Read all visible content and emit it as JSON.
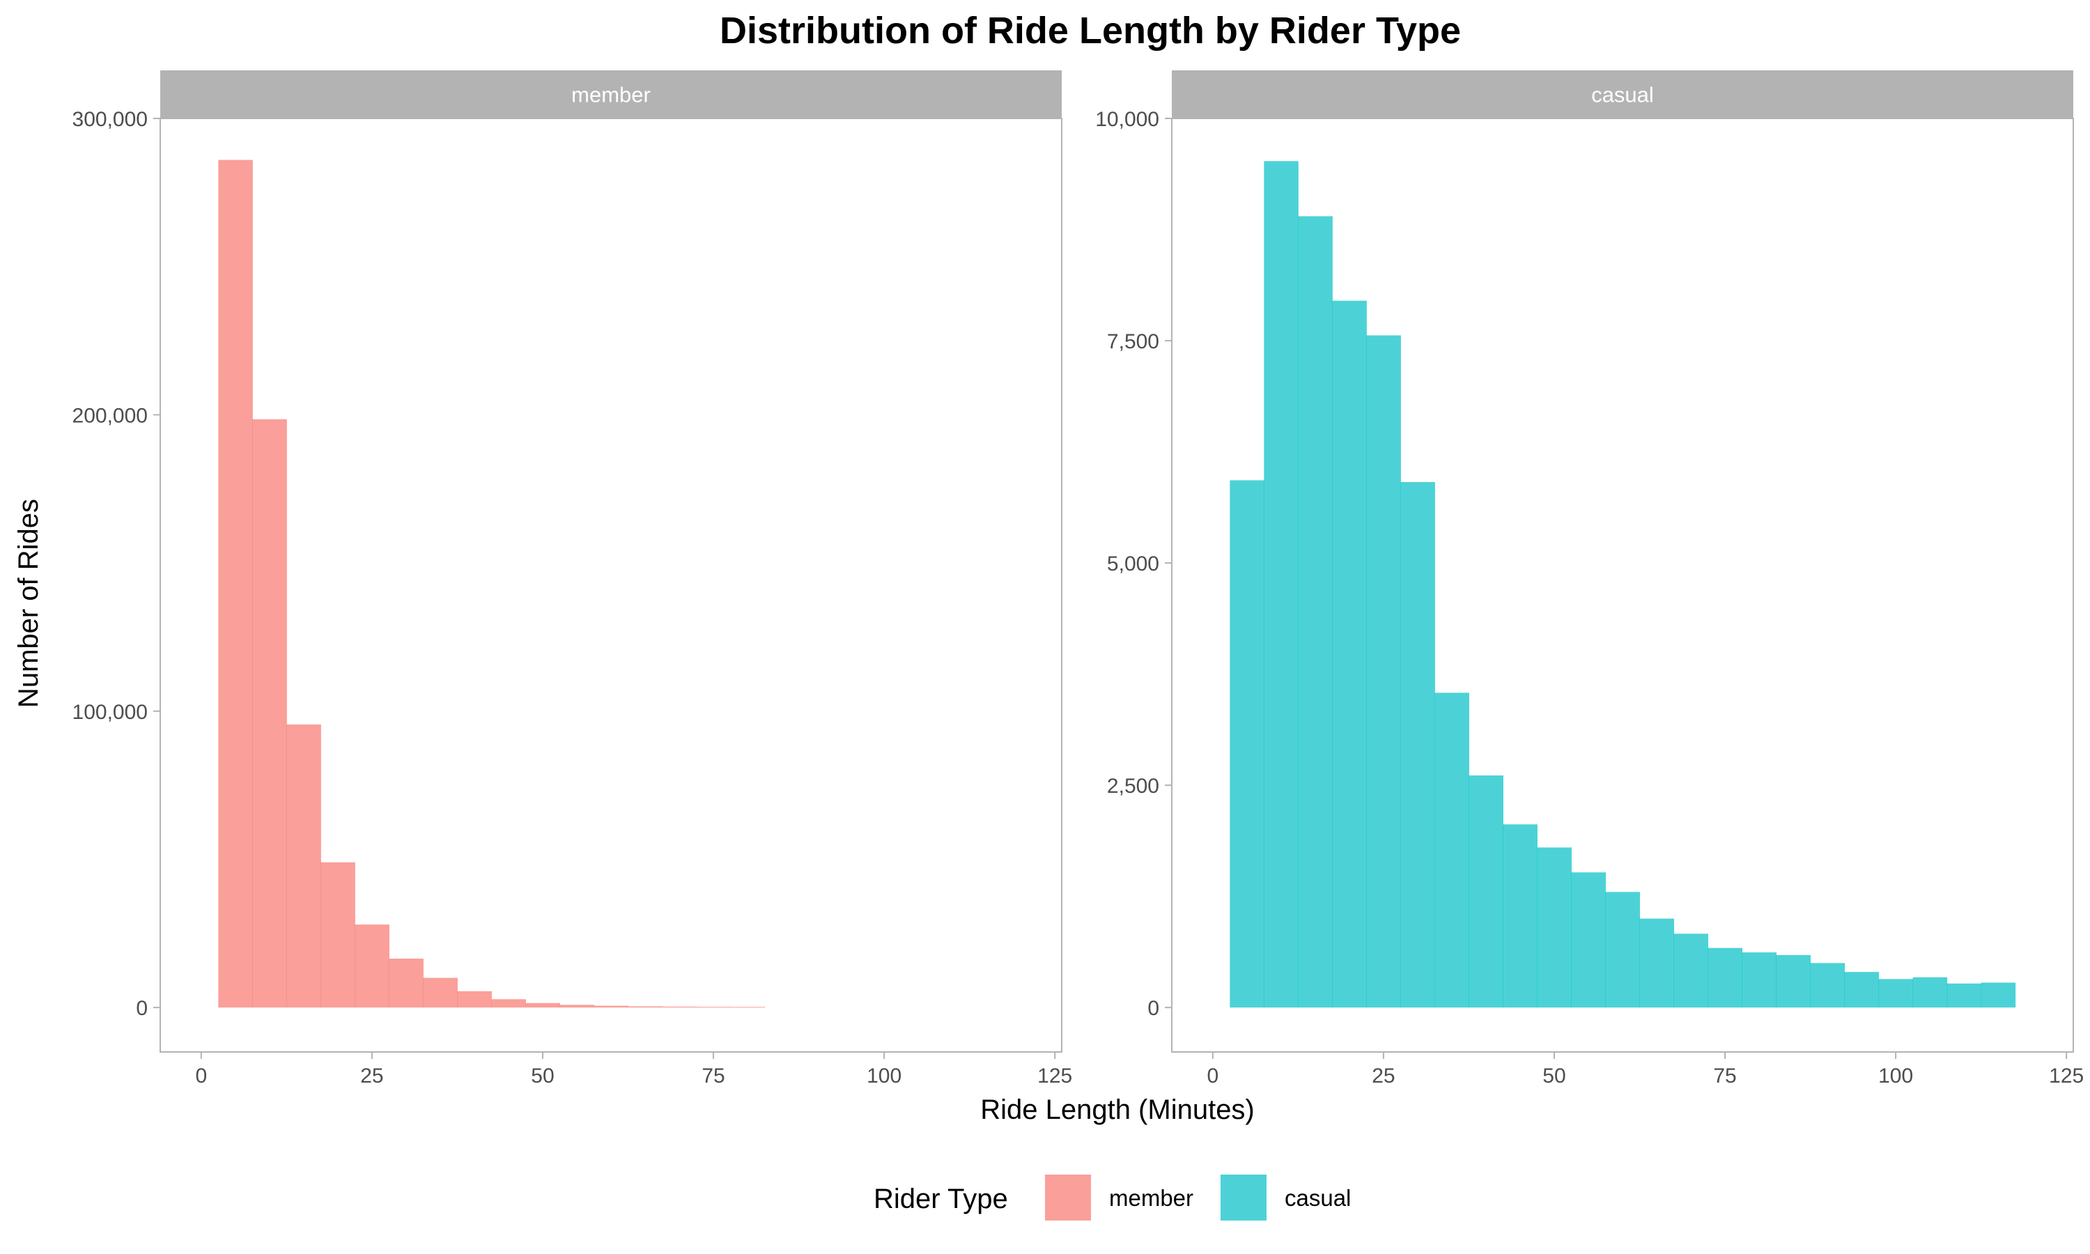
{
  "chart_data": {
    "type": "bar",
    "title": "Distribution of Ride Length by Rider Type",
    "xlabel": "Ride Length (Minutes)",
    "ylabel": "Number of Rides",
    "grid": false,
    "legend_placement": "bottom",
    "legend": {
      "title": "Rider Type",
      "entries": [
        {
          "name": "member",
          "color": "#F8766D"
        },
        {
          "name": "casual",
          "color": "#00BFC4"
        }
      ]
    },
    "bin_width": 5,
    "panels": [
      {
        "name": "member",
        "color": "#F8766D",
        "xlim": [
          -6,
          126
        ],
        "ylim": [
          -15000,
          300000
        ],
        "x_ticks": [
          0,
          25,
          50,
          75,
          100,
          125
        ],
        "y_ticks": [
          0,
          100000,
          200000,
          300000
        ],
        "y_tick_labels": [
          "0",
          "100,000",
          "200,000",
          "300,000"
        ],
        "bin_starts": [
          2.5,
          7.5,
          12.5,
          17.5,
          22.5,
          27.5,
          32.5,
          37.5,
          42.5,
          47.5,
          52.5,
          57.5,
          62.5,
          67.5,
          72.5,
          77.5
        ],
        "values": [
          286000,
          198500,
          95500,
          49000,
          28000,
          16500,
          10000,
          5500,
          2800,
          1500,
          900,
          600,
          400,
          300,
          250,
          200
        ]
      },
      {
        "name": "casual",
        "color": "#00BFC4",
        "xlim": [
          -6,
          126
        ],
        "ylim": [
          -500,
          10000
        ],
        "x_ticks": [
          0,
          25,
          50,
          75,
          100,
          125
        ],
        "y_ticks": [
          0,
          2500,
          5000,
          7500,
          10000
        ],
        "y_tick_labels": [
          "0",
          "2,500",
          "5,000",
          "7,500",
          "10,000"
        ],
        "bin_starts": [
          2.5,
          7.5,
          12.5,
          17.5,
          22.5,
          27.5,
          32.5,
          37.5,
          42.5,
          47.5,
          52.5,
          57.5,
          62.5,
          67.5,
          72.5,
          77.5,
          82.5,
          87.5,
          92.5,
          97.5,
          102.5,
          107.5,
          112.5
        ],
        "values": [
          5930,
          9520,
          8900,
          7950,
          7560,
          5910,
          3540,
          2610,
          2060,
          1800,
          1520,
          1300,
          1000,
          830,
          670,
          620,
          590,
          500,
          400,
          320,
          340,
          270,
          280
        ]
      }
    ]
  }
}
